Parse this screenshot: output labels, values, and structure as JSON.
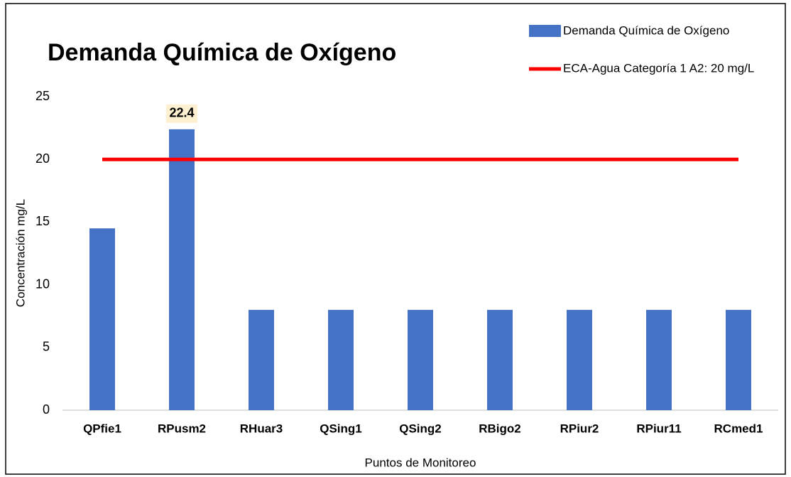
{
  "chart_data": {
    "type": "bar",
    "title": "Demanda Química de Oxígeno",
    "x_label": "Puntos de Monitoreo",
    "y_label": "Concentración mg/L",
    "categories": [
      "QPfie1",
      "RPusm2",
      "RHuar3",
      "QSing1",
      "QSing2",
      "RBigo2",
      "RPiur2",
      "RPiur11",
      "RCmed1"
    ],
    "series": [
      {
        "name": "Demanda Química de Oxígeno",
        "color": "#4472c4",
        "values": [
          14.5,
          22.4,
          8,
          8,
          8,
          8,
          8,
          8,
          8
        ],
        "value_labels": [
          null,
          "22.4",
          null,
          null,
          null,
          null,
          null,
          null,
          null
        ]
      }
    ],
    "reference_line": {
      "name": "ECA-Agua Categoría 1 A2: 20 mg/L",
      "value": 20,
      "color": "#ff0000"
    },
    "ylim": [
      0,
      25
    ],
    "yticks": [
      0,
      5,
      10,
      15,
      20,
      25
    ],
    "grid": false,
    "legend": "top-right"
  }
}
